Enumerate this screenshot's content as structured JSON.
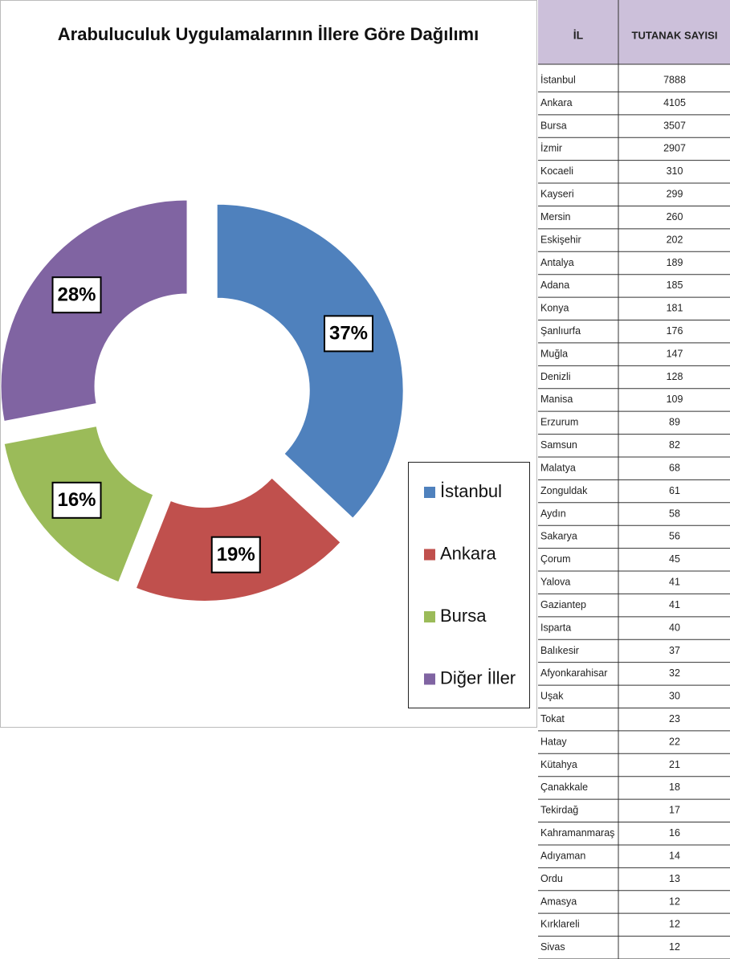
{
  "chart_data": {
    "type": "pie",
    "donut": true,
    "title": "Arabuluculuk Uygulamalarının İllere Göre Dağılımı",
    "categories": [
      "İstanbul",
      "Ankara",
      "Bursa",
      "Diğer İller"
    ],
    "values": [
      37,
      19,
      16,
      28
    ],
    "value_labels": [
      "37%",
      "19%",
      "16%",
      "28%"
    ],
    "colors": [
      "#4f81bd",
      "#c0504d",
      "#9bbb59",
      "#8064a2"
    ],
    "legend": "right"
  },
  "table": {
    "header": [
      "İL",
      "TUTANAK SAYISI"
    ],
    "rows": [
      [
        "İstanbul",
        7888
      ],
      [
        "Ankara",
        4105
      ],
      [
        "Bursa",
        3507
      ],
      [
        "İzmir",
        2907
      ],
      [
        "Kocaeli",
        310
      ],
      [
        "Kayseri",
        299
      ],
      [
        "Mersin",
        260
      ],
      [
        "Eskişehir",
        202
      ],
      [
        "Antalya",
        189
      ],
      [
        "Adana",
        185
      ],
      [
        "Konya",
        181
      ],
      [
        "Şanlıurfa",
        176
      ],
      [
        "Muğla",
        147
      ],
      [
        "Denizli",
        128
      ],
      [
        "Manisa",
        109
      ],
      [
        "Erzurum",
        89
      ],
      [
        "Samsun",
        82
      ],
      [
        "Malatya",
        68
      ],
      [
        "Zonguldak",
        61
      ],
      [
        "Aydın",
        58
      ],
      [
        "Sakarya",
        56
      ],
      [
        "Çorum",
        45
      ],
      [
        "Yalova",
        41
      ],
      [
        "Gaziantep",
        41
      ],
      [
        "Isparta",
        40
      ],
      [
        "Balıkesir",
        37
      ],
      [
        "Afyonkarahisar",
        32
      ],
      [
        "Uşak",
        30
      ],
      [
        "Tokat",
        23
      ],
      [
        "Hatay",
        22
      ],
      [
        "Kütahya",
        21
      ],
      [
        "Çanakkale",
        18
      ],
      [
        "Tekirdağ",
        17
      ],
      [
        "Kahramanmaraş",
        16
      ],
      [
        "Adıyaman",
        14
      ],
      [
        "Ordu",
        13
      ],
      [
        "Amasya",
        12
      ],
      [
        "Kırklareli",
        12
      ],
      [
        "Sivas",
        12
      ]
    ]
  }
}
